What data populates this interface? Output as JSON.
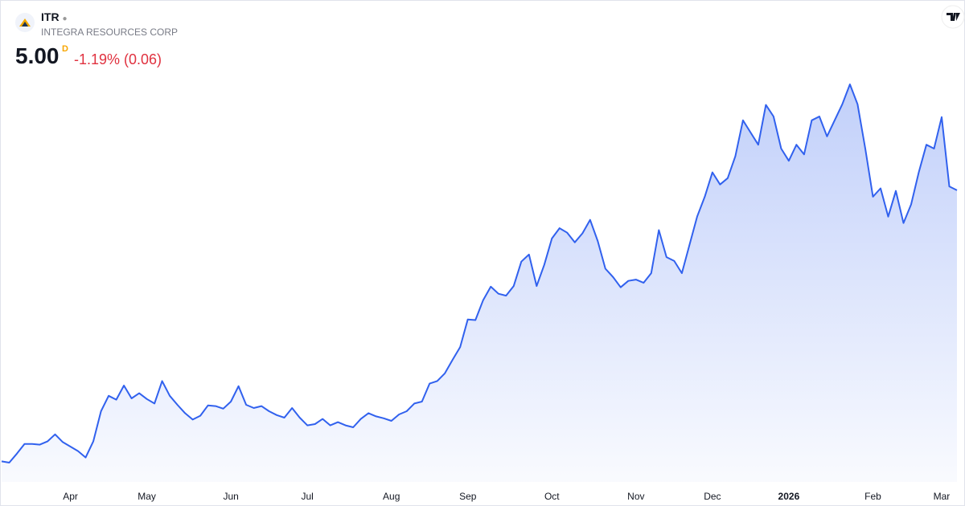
{
  "header": {
    "symbol": "ITR",
    "company": "INTEGRA RESOURCES CORP",
    "price": "5.00",
    "interval": "D",
    "change": "-1.19% (0.06)"
  },
  "chart_data": {
    "type": "area",
    "color": "#3161ee",
    "categories": [
      null,
      null,
      null,
      null,
      null,
      null,
      null,
      null,
      null,
      "Apr",
      null,
      null,
      null,
      null,
      null,
      null,
      null,
      null,
      null,
      "May",
      null,
      null,
      null,
      null,
      null,
      null,
      null,
      null,
      null,
      null,
      "Jun",
      null,
      null,
      null,
      null,
      null,
      null,
      null,
      null,
      null,
      "Jul",
      null,
      null,
      null,
      null,
      null,
      null,
      null,
      null,
      null,
      null,
      "Aug",
      null,
      null,
      null,
      null,
      null,
      null,
      null,
      null,
      null,
      "Sep",
      null,
      null,
      null,
      null,
      null,
      null,
      null,
      null,
      null,
      null,
      "Oct",
      null,
      null,
      null,
      null,
      null,
      null,
      null,
      null,
      null,
      null,
      "Nov",
      null,
      null,
      null,
      null,
      null,
      null,
      null,
      null,
      null,
      "Dec",
      null,
      null,
      null,
      null,
      null,
      null,
      null,
      null,
      null,
      "2026",
      null,
      null,
      null,
      null,
      null,
      null,
      null,
      null,
      null,
      null,
      "Feb",
      null,
      null,
      null,
      null,
      null,
      null,
      null,
      null,
      "Mar",
      null,
      null
    ],
    "values": [
      0.78,
      0.76,
      0.9,
      1.05,
      1.05,
      1.04,
      1.09,
      1.2,
      1.08,
      1.01,
      0.94,
      0.84,
      1.09,
      1.56,
      1.8,
      1.74,
      1.96,
      1.76,
      1.84,
      1.75,
      1.68,
      2.03,
      1.8,
      1.66,
      1.53,
      1.43,
      1.49,
      1.65,
      1.64,
      1.6,
      1.71,
      1.95,
      1.66,
      1.61,
      1.64,
      1.56,
      1.5,
      1.46,
      1.61,
      1.46,
      1.34,
      1.36,
      1.44,
      1.34,
      1.39,
      1.34,
      1.31,
      1.44,
      1.53,
      1.48,
      1.45,
      1.41,
      1.51,
      1.56,
      1.68,
      1.71,
      1.99,
      2.03,
      2.15,
      2.36,
      2.56,
      2.99,
      2.98,
      3.29,
      3.5,
      3.39,
      3.36,
      3.51,
      3.89,
      4.0,
      3.51,
      3.84,
      4.25,
      4.41,
      4.34,
      4.19,
      4.33,
      4.54,
      4.21,
      3.78,
      3.65,
      3.49,
      3.59,
      3.61,
      3.56,
      3.71,
      4.38,
      3.96,
      3.9,
      3.71,
      4.15,
      4.59,
      4.9,
      5.28,
      5.09,
      5.19,
      5.53,
      6.09,
      5.9,
      5.71,
      6.33,
      6.15,
      5.65,
      5.46,
      5.71,
      5.56,
      6.09,
      6.15,
      5.84,
      6.09,
      6.34,
      6.65,
      6.34,
      5.65,
      4.9,
      5.03,
      4.59,
      4.99,
      4.49,
      4.78,
      5.28,
      5.71,
      5.65,
      6.14,
      5.06,
      5.0
    ]
  }
}
